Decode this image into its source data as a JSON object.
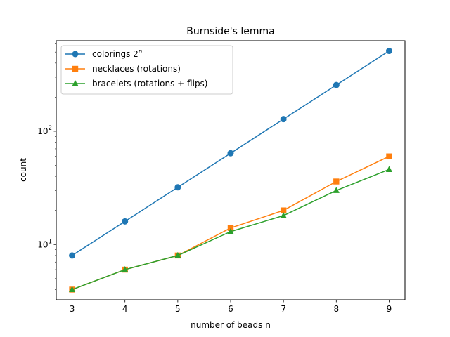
{
  "chart_data": {
    "type": "line",
    "title": "Burnside's lemma",
    "xlabel": "number of beads n",
    "ylabel": "count",
    "yscale": "log",
    "x": [
      3,
      4,
      5,
      6,
      7,
      8,
      9
    ],
    "xlim": [
      2.7,
      9.3
    ],
    "ylim": [
      3.25,
      630
    ],
    "x_ticks": [
      "3",
      "4",
      "5",
      "6",
      "7",
      "8",
      "9"
    ],
    "y_ticks": [
      {
        "value": 10,
        "base": "10",
        "exp": "1"
      },
      {
        "value": 100,
        "base": "10",
        "exp": "2"
      }
    ],
    "grid": false,
    "legend_position": "upper left",
    "series": [
      {
        "name_base": "colorings 2",
        "name_sup": "n",
        "color": "#1f77b4",
        "marker": "circle",
        "values": [
          8,
          16,
          32,
          64,
          128,
          256,
          512
        ]
      },
      {
        "name": "necklaces (rotations)",
        "color": "#ff7f0e",
        "marker": "square",
        "values": [
          4,
          6,
          8,
          14,
          20,
          36,
          60
        ]
      },
      {
        "name": "bracelets (rotations + flips)",
        "color": "#2ca02c",
        "marker": "triangle",
        "values": [
          4,
          6,
          8,
          13,
          18,
          30,
          46
        ]
      }
    ]
  }
}
